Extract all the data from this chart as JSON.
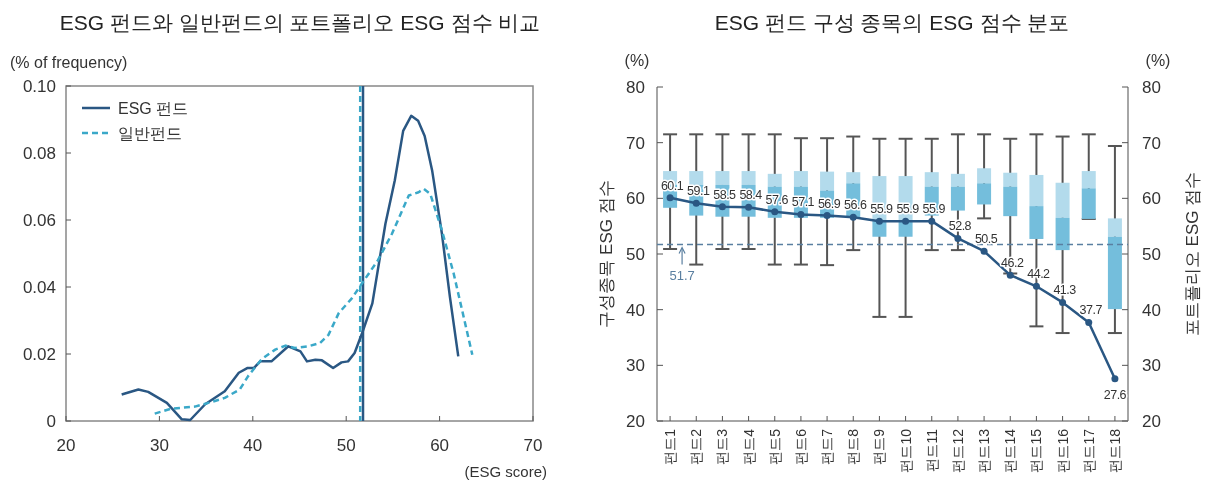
{
  "chart_data": [
    {
      "type": "line",
      "title": "ESG 펀드와 일반펀드의 포트폴리오 ESG 점수 비교",
      "ylabel": "(% of frequency)",
      "xlabel": "(ESG score)",
      "xlim": [
        20,
        70
      ],
      "xticks": [
        20,
        30,
        40,
        50,
        60,
        70
      ],
      "ylim": [
        0,
        0.1
      ],
      "yticks": [
        0,
        0.02,
        0.04,
        0.06,
        0.08,
        {
          "value": 0.1,
          "label": "0.10"
        }
      ],
      "legend": "top left",
      "series": [
        {
          "name": "ESG 펀드",
          "color": "#2a5783",
          "line_style": "solid",
          "x": [
            25.96,
            27.75,
            28.8,
            30.8,
            32.4,
            33.3,
            34.9,
            37.0,
            38.5,
            39.4,
            40.1,
            40.8,
            42.0,
            43.8,
            45.1,
            45.8,
            46.7,
            47.4,
            48.6,
            49.5,
            50.2,
            50.9,
            51.7,
            52.8,
            54.2,
            55.2,
            56.1,
            56.96,
            57.7,
            58.4,
            59.2,
            60.25,
            61.1,
            62.0
          ],
          "values": [
            0.0079,
            0.0094,
            0.0087,
            0.0054,
            0.0005,
            0.0003,
            0.005,
            0.0089,
            0.0144,
            0.0158,
            0.0158,
            0.0178,
            0.0178,
            0.0223,
            0.0208,
            0.0178,
            0.0183,
            0.0181,
            0.0158,
            0.0175,
            0.0178,
            0.0203,
            0.0262,
            0.0351,
            0.0589,
            0.0718,
            0.0866,
            0.0911,
            0.0896,
            0.0851,
            0.0748,
            0.0559,
            0.0371,
            0.0193
          ]
        },
        {
          "name": "일반펀드",
          "color": "#3aa8c8",
          "line_style": "dashed",
          "x": [
            29.5,
            31.3,
            33.8,
            35.25,
            37.0,
            38.6,
            39.5,
            40.96,
            42.4,
            43.5,
            44.5,
            45.96,
            47.2,
            48.1,
            49.2,
            50.6,
            51.7,
            53.4,
            54.9,
            56.7,
            57.75,
            58.3,
            59.0,
            60.25,
            61.5,
            62.4,
            63.5
          ],
          "values": [
            0.0022,
            0.0037,
            0.0043,
            0.0054,
            0.0069,
            0.0094,
            0.0134,
            0.0185,
            0.0213,
            0.0225,
            0.0218,
            0.0223,
            0.0233,
            0.0257,
            0.0322,
            0.0366,
            0.0411,
            0.048,
            0.0559,
            0.0673,
            0.0683,
            0.0693,
            0.0678,
            0.0569,
            0.0441,
            0.0332,
            0.0198
          ]
        }
      ],
      "ref_lines": [
        {
          "axis": "x",
          "value": 51.8,
          "color": "#2a5783",
          "line_style": "solid"
        },
        {
          "axis": "x",
          "value": 51.5,
          "color": "#3aa8c8",
          "line_style": "dashed"
        }
      ]
    },
    {
      "type": "box",
      "title": "ESG 펀드 구성 종목의 ESG 점수 분포",
      "ylabel": "구성종목 ESG 점수",
      "y2label": "포트폴리오 ESG 점수",
      "annotations": [
        "(%)",
        "(%)"
      ],
      "categories": [
        "펀드1",
        "펀드2",
        "펀드3",
        "펀드4",
        "펀드5",
        "펀드6",
        "펀드7",
        "펀드8",
        "펀드9",
        "펀드10",
        "펀드11",
        "펀드12",
        "펀드13",
        "펀드14",
        "펀드15",
        "펀드16",
        "펀드17",
        "펀드18"
      ],
      "ylim": [
        20,
        80
      ],
      "yticks": [
        20,
        30,
        40,
        50,
        60,
        70,
        80
      ],
      "y2lim": [
        20,
        80
      ],
      "y2ticks": [
        20,
        30,
        40,
        50,
        60,
        70,
        80
      ],
      "series": [
        {
          "type": "box",
          "color": "#74bedc",
          "boxes": [
            {
              "low": 50.9,
              "q1": 58.3,
              "median": 62.4,
              "q3": 64.9,
              "high": 71.5
            },
            {
              "low": 48.1,
              "q1": 56.9,
              "median": 62.4,
              "q3": 64.9,
              "high": 71.5
            },
            {
              "low": 50.9,
              "q1": 56.7,
              "median": 62.4,
              "q3": 64.9,
              "high": 71.5
            },
            {
              "low": 50.9,
              "q1": 56.7,
              "median": 62.4,
              "q3": 64.9,
              "high": 71.5
            },
            {
              "low": 48.1,
              "q1": 56.5,
              "median": 62.1,
              "q3": 64.4,
              "high": 71.5
            },
            {
              "low": 48.1,
              "q1": 56.5,
              "median": 62.1,
              "q3": 64.9,
              "high": 70.8
            },
            {
              "low": 48.0,
              "q1": 56.5,
              "median": 61.4,
              "q3": 64.8,
              "high": 70.8
            },
            {
              "low": 50.7,
              "q1": 56.5,
              "median": 62.7,
              "q3": 64.7,
              "high": 71.1
            },
            {
              "low": 38.7,
              "q1": 53.1,
              "median": 55.9,
              "q3": 64.0,
              "high": 70.7
            },
            {
              "low": 38.7,
              "q1": 53.1,
              "median": 55.9,
              "q3": 64.0,
              "high": 70.7
            },
            {
              "low": 50.7,
              "q1": 56.9,
              "median": 62.1,
              "q3": 64.7,
              "high": 70.7
            },
            {
              "low": 50.7,
              "q1": 57.8,
              "median": 62.1,
              "q3": 64.4,
              "high": 71.5
            },
            {
              "low": 56.4,
              "q1": 58.9,
              "median": 62.7,
              "q3": 65.4,
              "high": 71.5
            },
            {
              "low": 46.5,
              "q1": 56.8,
              "median": 62.1,
              "q3": 64.6,
              "high": 70.7
            },
            {
              "low": 37.0,
              "q1": 52.7,
              "median": 58.6,
              "q3": 64.2,
              "high": 71.5
            },
            {
              "low": 35.8,
              "q1": 50.7,
              "median": 56.5,
              "q3": 62.8,
              "high": 71.1
            },
            {
              "low": 56.3,
              "q1": 56.3,
              "median": 61.8,
              "q3": 64.9,
              "high": 71.5
            },
            {
              "low": 35.8,
              "q1": 40.1,
              "median": 53.1,
              "q3": 56.4,
              "high": 69.4
            }
          ]
        },
        {
          "type": "line",
          "color": "#2a5783",
          "marker": "circle",
          "values": [
            60.1,
            59.1,
            58.5,
            58.4,
            57.6,
            57.1,
            56.9,
            56.6,
            55.9,
            55.9,
            55.9,
            52.8,
            50.5,
            46.2,
            44.2,
            41.3,
            37.7,
            27.6
          ],
          "value_labels": [
            "60.1",
            "59.1",
            "58.5",
            "58.4",
            "57.6",
            "57.1",
            "56.9",
            "56.6",
            "55.9",
            "55.9",
            "55.9",
            "52.8",
            "50.5",
            "46.2",
            "44.2",
            "41.3",
            "37.7",
            "27.6"
          ]
        }
      ],
      "ref_lines": [
        {
          "axis": "y",
          "value": 51.7,
          "label": "51.7",
          "color": "#5a7fa0",
          "line_style": "dashed"
        }
      ]
    }
  ]
}
